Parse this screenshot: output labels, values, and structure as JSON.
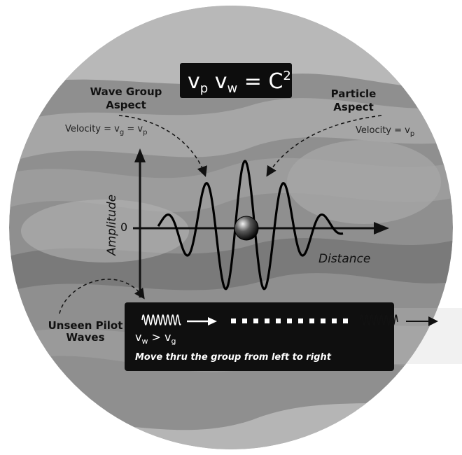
{
  "equation": {
    "main": "v",
    "sub1": "p",
    "mid": " v",
    "sub2": "w",
    "tail": " = C",
    "sup": "2"
  },
  "wave_group": {
    "title_line1": "Wave Group",
    "title_line2": "Aspect",
    "velocity_prefix": "Velocity = v",
    "velocity_sub1": "g",
    "velocity_eq": " = v",
    "velocity_sub2": "p"
  },
  "particle": {
    "title_line1": "Particle",
    "title_line2": "Aspect",
    "velocity_prefix": "Velocity = v",
    "velocity_sub": "p"
  },
  "axes": {
    "y_label": "Amplitude",
    "zero_label": "0",
    "x_label": "Distance"
  },
  "pilot": {
    "title_line1": "Unseen Pilot",
    "title_line2": "Waves",
    "relation_v": "v",
    "relation_sub1": "w",
    "relation_gt": " > v",
    "relation_sub2": "g",
    "caption": "Move thru the group from left to right"
  },
  "colors": {
    "panel": "#111111",
    "disc_base": "#8f8f8f",
    "wave": "#000000",
    "white": "#ffffff"
  }
}
